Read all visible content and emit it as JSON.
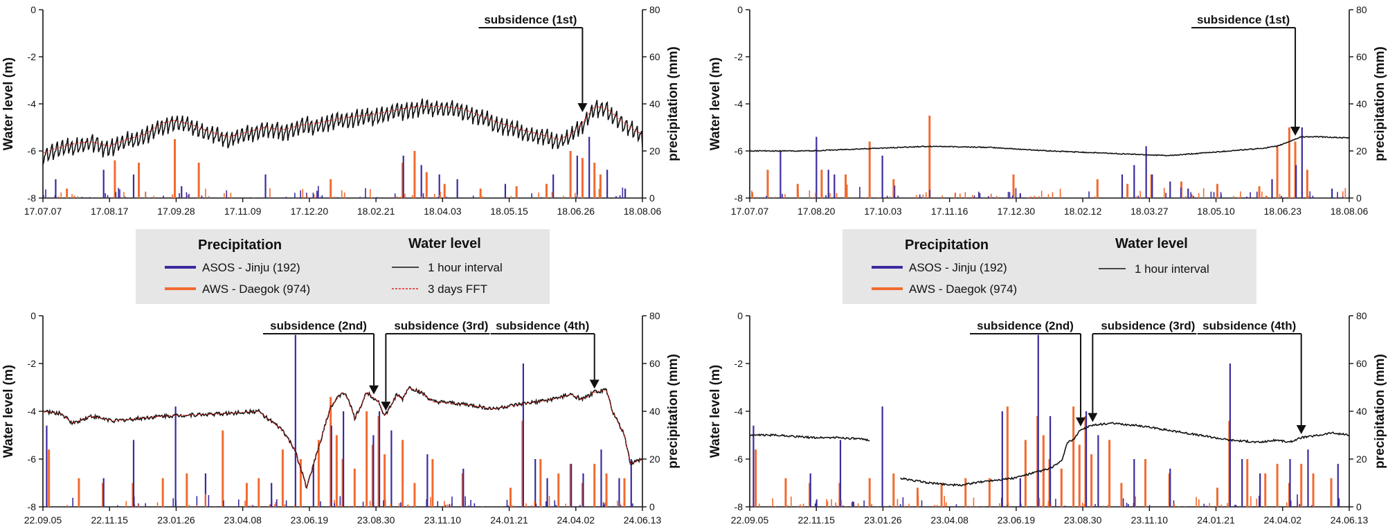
{
  "colors": {
    "asos": "#3a2a9e",
    "aws": "#f26a2e",
    "water": "#111111",
    "fft": "#e0201b",
    "legend_bg": "#e6e6e6"
  },
  "chart_data": [
    {
      "type": "line",
      "panel": "top-left",
      "ylabel": "Water level (m)",
      "y2label": "precipitation (mm)",
      "ylim": [
        -8,
        0
      ],
      "y2lim": [
        0,
        80
      ],
      "yticks": [
        "-8",
        "-6",
        "-4",
        "-2",
        "0"
      ],
      "y2ticks": [
        "0",
        "20",
        "40",
        "60",
        "80"
      ],
      "xticks": [
        "17.07.07",
        "17.08.17",
        "17.09.28",
        "17.11.09",
        "17.12.20",
        "18.02.21",
        "18.04.03",
        "18.05.15",
        "18.06.26",
        "18.08.06"
      ],
      "water_level": {
        "x": [
          0,
          0.02,
          0.05,
          0.08,
          0.11,
          0.14,
          0.17,
          0.2,
          0.22,
          0.25,
          0.28,
          0.31,
          0.34,
          0.37,
          0.4,
          0.43,
          0.46,
          0.5,
          0.53,
          0.56,
          0.6,
          0.63,
          0.66,
          0.7,
          0.73,
          0.76,
          0.8,
          0.83,
          0.86,
          0.88,
          0.9,
          0.92,
          0.94,
          0.96,
          0.98,
          1
        ],
        "y": [
          -5.8,
          -5.6,
          -5.4,
          -5.3,
          -5.5,
          -5.2,
          -5.0,
          -4.5,
          -4.4,
          -4.6,
          -4.9,
          -5.1,
          -4.9,
          -4.7,
          -4.8,
          -4.6,
          -4.5,
          -4.3,
          -4.2,
          -4.1,
          -3.9,
          -3.8,
          -3.8,
          -3.9,
          -4.2,
          -4.5,
          -4.8,
          -5.0,
          -5.2,
          -5.0,
          -4.5,
          -3.8,
          -3.9,
          -4.3,
          -4.7,
          -5.0
        ],
        "noise": 0.55
      },
      "fft": true,
      "precip_asos": {
        "x": [
          0.02,
          0.1,
          0.15,
          0.23,
          0.37,
          0.6,
          0.63,
          0.66,
          0.69,
          0.77,
          0.85,
          0.89,
          0.91,
          0.94,
          0.97
        ],
        "v": [
          8,
          12,
          10,
          5,
          10,
          18,
          14,
          10,
          8,
          6,
          10,
          18,
          26,
          12,
          4
        ]
      },
      "precip_aws": {
        "x": [
          0.04,
          0.12,
          0.16,
          0.22,
          0.26,
          0.48,
          0.6,
          0.62,
          0.64,
          0.67,
          0.73,
          0.79,
          0.84,
          0.88,
          0.9,
          0.92,
          0.93
        ],
        "v": [
          4,
          16,
          15,
          25,
          15,
          8,
          15,
          20,
          11,
          6,
          4,
          5,
          6,
          20,
          17,
          15,
          10
        ]
      },
      "annotations": [
        {
          "text": "subsidence (1st)",
          "x": 0.9
        }
      ]
    },
    {
      "type": "line",
      "panel": "top-right",
      "ylabel": "Water level (m)",
      "y2label": "precipitation (mm)",
      "ylim": [
        -8,
        0
      ],
      "y2lim": [
        0,
        80
      ],
      "yticks": [
        "-8",
        "-6",
        "-4",
        "-2",
        "0"
      ],
      "y2ticks": [
        "0",
        "20",
        "40",
        "60",
        "80"
      ],
      "xticks": [
        "17.07.07",
        "17.08.20",
        "17.10.03",
        "17.11.16",
        "17.12.30",
        "18.02.12",
        "18.03.27",
        "18.05.10",
        "18.06.23",
        "18.08.06"
      ],
      "water_level": {
        "x": [
          0,
          0.1,
          0.2,
          0.3,
          0.4,
          0.5,
          0.6,
          0.7,
          0.8,
          0.85,
          0.88,
          0.9,
          0.92,
          0.95,
          1
        ],
        "y": [
          -6.0,
          -6.0,
          -5.9,
          -5.8,
          -5.85,
          -6.0,
          -6.1,
          -6.2,
          -6.0,
          -5.9,
          -5.8,
          -5.6,
          -5.4,
          -5.4,
          -5.45
        ],
        "noise": 0.02
      },
      "fft": false,
      "precip_asos": {
        "x": [
          0.05,
          0.11,
          0.13,
          0.14,
          0.22,
          0.45,
          0.62,
          0.64,
          0.66,
          0.67,
          0.7,
          0.73,
          0.87,
          0.91,
          0.92,
          0.97
        ],
        "v": [
          20,
          26,
          12,
          10,
          18,
          2,
          10,
          14,
          22,
          10,
          7,
          4,
          8,
          14,
          30,
          4
        ]
      },
      "precip_aws": {
        "x": [
          0.03,
          0.08,
          0.12,
          0.16,
          0.2,
          0.24,
          0.3,
          0.44,
          0.58,
          0.63,
          0.67,
          0.72,
          0.78,
          0.85,
          0.88,
          0.9,
          0.91,
          0.93
        ],
        "v": [
          12,
          6,
          12,
          10,
          24,
          8,
          35,
          10,
          8,
          6,
          10,
          7,
          6,
          5,
          22,
          30,
          24,
          12
        ]
      },
      "annotations": [
        {
          "text": "subsidence (1st)",
          "x": 0.91
        }
      ]
    },
    {
      "type": "line",
      "panel": "bottom-left",
      "ylabel": "Water level (m)",
      "y2label": "precipitation (mm)",
      "ylim": [
        -8,
        0
      ],
      "y2lim": [
        0,
        80
      ],
      "yticks": [
        "-8",
        "-6",
        "-4",
        "-2",
        "0"
      ],
      "y2ticks": [
        "0",
        "20",
        "40",
        "60",
        "80"
      ],
      "xticks": [
        "22.09.05",
        "22.11.15",
        "23.01.26",
        "23.04.08",
        "23.06.19",
        "23.08.30",
        "23.11.10",
        "24.01.21",
        "24.04.02",
        "24.06.13"
      ],
      "water_level": {
        "x": [
          0,
          0.03,
          0.05,
          0.08,
          0.12,
          0.2,
          0.3,
          0.36,
          0.4,
          0.42,
          0.44,
          0.46,
          0.48,
          0.5,
          0.51,
          0.52,
          0.53,
          0.54,
          0.55,
          0.56,
          0.57,
          0.58,
          0.59,
          0.6,
          0.61,
          0.63,
          0.65,
          0.7,
          0.75,
          0.8,
          0.85,
          0.88,
          0.9,
          0.92,
          0.94,
          0.95,
          0.97,
          0.98,
          1
        ],
        "y": [
          -4.0,
          -4.1,
          -4.5,
          -4.2,
          -4.4,
          -4.2,
          -4.1,
          -4.0,
          -4.8,
          -5.6,
          -7.2,
          -5.5,
          -3.8,
          -3.2,
          -3.5,
          -4.3,
          -3.8,
          -3.2,
          -3.4,
          -3.6,
          -4.2,
          -3.8,
          -3.3,
          -3.5,
          -3.0,
          -3.2,
          -3.6,
          -3.7,
          -3.9,
          -3.7,
          -3.5,
          -3.3,
          -3.5,
          -3.2,
          -3.1,
          -4.0,
          -5.0,
          -6.2,
          -6.0
        ],
        "noise": 0.08
      },
      "fft": true,
      "precip_asos": {
        "x": [
          0.005,
          0.1,
          0.15,
          0.22,
          0.27,
          0.38,
          0.42,
          0.45,
          0.48,
          0.5,
          0.55,
          0.56,
          0.58,
          0.64,
          0.7,
          0.8,
          0.82,
          0.84,
          0.88,
          0.9,
          0.93,
          0.96,
          0.98
        ],
        "v": [
          34,
          12,
          28,
          42,
          14,
          10,
          72,
          18,
          34,
          40,
          30,
          40,
          32,
          22,
          16,
          60,
          20,
          12,
          18,
          14,
          24,
          12,
          20
        ]
      },
      "precip_aws": {
        "x": [
          0.01,
          0.06,
          0.1,
          0.15,
          0.2,
          0.24,
          0.3,
          0.34,
          0.36,
          0.4,
          0.43,
          0.46,
          0.48,
          0.49,
          0.5,
          0.52,
          0.54,
          0.55,
          0.56,
          0.57,
          0.6,
          0.62,
          0.65,
          0.7,
          0.78,
          0.8,
          0.83,
          0.86,
          0.88,
          0.9,
          0.92,
          0.94,
          0.97
        ],
        "v": [
          24,
          12,
          10,
          10,
          12,
          14,
          32,
          10,
          12,
          24,
          20,
          28,
          46,
          30,
          20,
          16,
          40,
          26,
          38,
          22,
          28,
          10,
          20,
          14,
          8,
          36,
          20,
          14,
          18,
          10,
          18,
          14,
          12
        ]
      },
      "annotations": [
        {
          "text": "subsidence (2nd)",
          "x": 0.552
        },
        {
          "text": "subsidence (3rd)",
          "x": 0.572
        },
        {
          "text": "subsidence (4th)",
          "x": 0.92
        }
      ]
    },
    {
      "type": "line",
      "panel": "bottom-right",
      "ylabel": "Water level (m)",
      "y2label": "precipitation (mm)",
      "ylim": [
        -8,
        0
      ],
      "y2lim": [
        0,
        80
      ],
      "yticks": [
        "-8",
        "-6",
        "-4",
        "-2",
        "0"
      ],
      "y2ticks": [
        "0",
        "20",
        "40",
        "60",
        "80"
      ],
      "xticks": [
        "22.09.05",
        "22.11.15",
        "23.01.26",
        "23.04.08",
        "23.06.19",
        "23.08.30",
        "23.11.10",
        "24.01.21",
        "24.04.02",
        "24.06.13"
      ],
      "water_level": {
        "x": [
          0,
          0.05,
          0.1,
          0.15,
          0.2,
          0.22,
          0.25,
          0.3,
          0.35,
          0.4,
          0.44,
          0.47,
          0.5,
          0.52,
          0.53,
          0.54,
          0.55,
          0.57,
          0.6,
          0.65,
          0.7,
          0.75,
          0.8,
          0.85,
          0.88,
          0.9,
          0.92,
          0.95,
          0.97,
          1
        ],
        "y": [
          -5.0,
          -5.0,
          -5.1,
          -5.1,
          -5.2,
          null,
          -6.8,
          -7.0,
          -7.1,
          -6.9,
          -6.8,
          -6.6,
          -6.4,
          -6.1,
          -5.3,
          -5.2,
          -4.8,
          -4.6,
          -4.5,
          -4.6,
          -4.8,
          -5.0,
          -5.2,
          -5.3,
          -5.2,
          -5.3,
          -5.1,
          -5.0,
          -4.9,
          -5.0
        ],
        "noise": 0.04
      },
      "fft": false,
      "precip_asos": {
        "x": [
          0.005,
          0.1,
          0.15,
          0.22,
          0.42,
          0.45,
          0.48,
          0.5,
          0.56,
          0.58,
          0.64,
          0.7,
          0.8,
          0.82,
          0.85,
          0.9,
          0.93,
          0.98
        ],
        "v": [
          34,
          14,
          28,
          42,
          40,
          12,
          72,
          38,
          40,
          30,
          20,
          16,
          60,
          20,
          14,
          20,
          24,
          18
        ]
      },
      "precip_aws": {
        "x": [
          0.01,
          0.06,
          0.1,
          0.15,
          0.2,
          0.24,
          0.28,
          0.32,
          0.36,
          0.4,
          0.43,
          0.46,
          0.48,
          0.49,
          0.5,
          0.52,
          0.54,
          0.55,
          0.56,
          0.57,
          0.6,
          0.62,
          0.66,
          0.7,
          0.78,
          0.8,
          0.83,
          0.86,
          0.88,
          0.9,
          0.92,
          0.94,
          0.97
        ],
        "v": [
          24,
          12,
          10,
          10,
          12,
          14,
          8,
          10,
          12,
          12,
          42,
          28,
          38,
          30,
          20,
          16,
          42,
          26,
          38,
          22,
          28,
          10,
          20,
          14,
          8,
          36,
          20,
          14,
          18,
          10,
          18,
          14,
          12
        ]
      },
      "annotations": [
        {
          "text": "subsidence (2nd)",
          "x": 0.552
        },
        {
          "text": "subsidence (3rd)",
          "x": 0.572
        },
        {
          "text": "subsidence (4th)",
          "x": 0.92
        }
      ]
    }
  ],
  "legends": [
    {
      "precip_title": "Precipitation",
      "precip_items": [
        "ASOS  - Jinju (192)",
        "AWS - Daegok (974)"
      ],
      "water_title": "Water level",
      "water_items": [
        "1 hour interval",
        "3 days FFT"
      ]
    },
    {
      "precip_title": "Precipitation",
      "precip_items": [
        "ASOS  - Jinju (192)",
        "AWS - Daegok (974)"
      ],
      "water_title": "Water level",
      "water_items": [
        "1 hour interval"
      ]
    }
  ]
}
